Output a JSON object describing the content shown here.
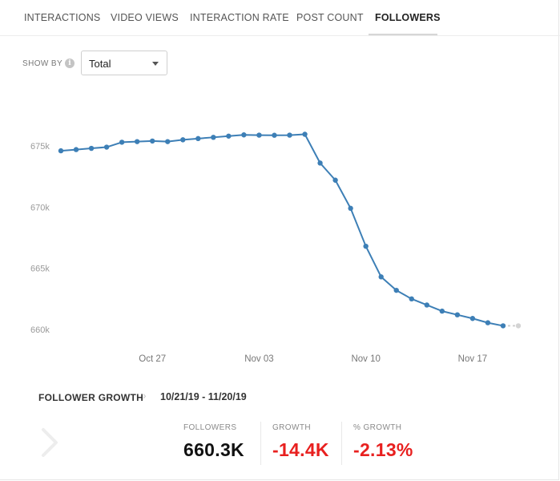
{
  "tabs": [
    {
      "label": "INTERACTIONS",
      "active": false
    },
    {
      "label": "VIDEO VIEWS",
      "active": false
    },
    {
      "label": "INTERACTION RATE",
      "active": false
    },
    {
      "label": "POST COUNT",
      "active": false
    },
    {
      "label": "FOLLOWERS",
      "active": true
    }
  ],
  "show_by": {
    "label": "SHOW BY",
    "info_icon": "info-icon",
    "value": "Total"
  },
  "chart_data": {
    "type": "line",
    "title": "",
    "xlabel": "",
    "ylabel": "",
    "y_ticks": [
      {
        "value": 675000,
        "label": "675k"
      },
      {
        "value": 670000,
        "label": "670k"
      },
      {
        "value": 665000,
        "label": "665k"
      },
      {
        "value": 660000,
        "label": "660k"
      }
    ],
    "x_ticks": [
      {
        "date": "2019-10-27",
        "label": "Oct 27"
      },
      {
        "date": "2019-11-03",
        "label": "Nov 03"
      },
      {
        "date": "2019-11-10",
        "label": "Nov 10"
      },
      {
        "date": "2019-11-17",
        "label": "Nov 17"
      }
    ],
    "x": [
      "2019-10-21",
      "2019-10-22",
      "2019-10-23",
      "2019-10-24",
      "2019-10-25",
      "2019-10-26",
      "2019-10-27",
      "2019-10-28",
      "2019-10-29",
      "2019-10-30",
      "2019-10-31",
      "2019-11-01",
      "2019-11-02",
      "2019-11-03",
      "2019-11-04",
      "2019-11-05",
      "2019-11-06",
      "2019-11-07",
      "2019-11-08",
      "2019-11-09",
      "2019-11-10",
      "2019-11-11",
      "2019-11-12",
      "2019-11-13",
      "2019-11-14",
      "2019-11-15",
      "2019-11-16",
      "2019-11-17",
      "2019-11-18",
      "2019-11-19",
      "2019-11-20"
    ],
    "series": [
      {
        "color": "#3d7fb6",
        "values": [
          674600,
          674700,
          674800,
          674900,
          675300,
          675350,
          675400,
          675350,
          675500,
          675600,
          675700,
          675800,
          675900,
          675880,
          675870,
          675880,
          675950,
          673600,
          672200,
          669900,
          666800,
          664300,
          663200,
          662500,
          662000,
          661500,
          661200,
          660900,
          660550,
          660300,
          660300
        ]
      }
    ],
    "partial_last_point": true,
    "ylim": [
      660000,
      676500
    ],
    "grid": false,
    "legend": "none"
  },
  "summary": {
    "title": "FOLLOWER GROWTH",
    "chevron": "chevron-right-icon",
    "date_range": "10/21/19 - 11/20/19",
    "stats": [
      {
        "label": "FOLLOWERS",
        "value": "660.3K",
        "color": "#111111"
      },
      {
        "label": "GROWTH",
        "value": "-14.4K",
        "color": "#e8201f"
      },
      {
        "label": "% GROWTH",
        "value": "-2.13%",
        "color": "#e8201f"
      }
    ]
  }
}
